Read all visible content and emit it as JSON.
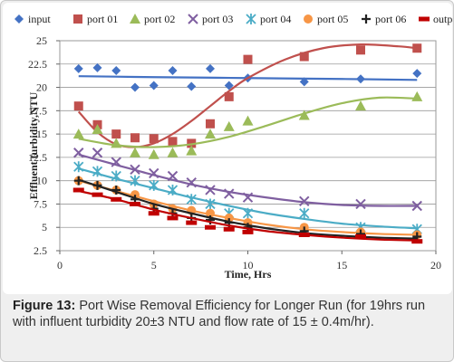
{
  "caption": {
    "label": "Figure 13:",
    "text": " Port Wise Removal Efficiency for Longer Run (for 19hrs run with influent turbidity 20±3 NTU and flow rate of 15 ± 0.4m/hr)."
  },
  "chart_data": {
    "type": "scatter",
    "title": "",
    "xlabel": "Time, Hrs",
    "ylabel": "Effluent turbidity,NTU",
    "xlim": [
      0,
      20
    ],
    "ylim": [
      2.5,
      25
    ],
    "xticks": [
      0,
      5,
      10,
      15,
      20
    ],
    "yticks": [
      2.5,
      5,
      7.5,
      10,
      12.5,
      15,
      17.5,
      20,
      22.5,
      25
    ],
    "ytick_labels": [
      "2.5",
      "5",
      "7.5",
      "10",
      "12.5",
      "15",
      "17.5",
      "20",
      "22.5",
      "25"
    ],
    "grid": true,
    "legend_position": "top",
    "series": [
      {
        "name": "input",
        "marker": "diamond",
        "color": "#4472c4",
        "x": [
          1,
          2,
          3,
          4,
          5,
          6,
          7,
          8,
          9,
          10,
          13,
          16,
          19
        ],
        "y": [
          22,
          22.1,
          21.8,
          20,
          20.2,
          21.8,
          20.1,
          22,
          20.2,
          21,
          20.6,
          20.9,
          21.5
        ],
        "trend": [
          [
            1,
            21.2
          ],
          [
            5,
            21.1
          ],
          [
            10,
            21.0
          ],
          [
            15,
            20.9
          ],
          [
            19,
            20.8
          ]
        ]
      },
      {
        "name": "port 01",
        "marker": "square",
        "color": "#c0504d",
        "x": [
          1,
          2,
          3,
          4,
          5,
          6,
          7,
          8,
          9,
          10,
          13,
          16,
          19
        ],
        "y": [
          18,
          16,
          15,
          14.6,
          14.5,
          14.2,
          14,
          16.1,
          19,
          23,
          23.3,
          24,
          24.2
        ],
        "trend": [
          [
            1,
            17.4
          ],
          [
            2,
            15.2
          ],
          [
            3,
            13.9
          ],
          [
            4,
            13.6
          ],
          [
            5,
            14.0
          ],
          [
            6,
            15.0
          ],
          [
            7,
            16.4
          ],
          [
            8,
            18.0
          ],
          [
            9,
            19.6
          ],
          [
            10,
            21.0
          ],
          [
            12,
            23.0
          ],
          [
            14,
            24.2
          ],
          [
            16,
            24.6
          ],
          [
            18,
            24.4
          ],
          [
            19,
            24.2
          ]
        ]
      },
      {
        "name": "port 02",
        "marker": "triangle",
        "color": "#9bbb59",
        "x": [
          1,
          2,
          3,
          4,
          5,
          6,
          7,
          8,
          9,
          10,
          13,
          16,
          19
        ],
        "y": [
          15,
          15.5,
          14,
          13,
          12.8,
          13,
          13.2,
          15,
          15.8,
          16.4,
          17,
          18,
          19
        ],
        "trend": [
          [
            1,
            14.5
          ],
          [
            3,
            13.8
          ],
          [
            5,
            13.6
          ],
          [
            7,
            13.9
          ],
          [
            9,
            14.7
          ],
          [
            11,
            15.9
          ],
          [
            13,
            17.2
          ],
          [
            15,
            18.3
          ],
          [
            17,
            18.9
          ],
          [
            19,
            18.8
          ]
        ]
      },
      {
        "name": "port 03",
        "marker": "x",
        "color": "#7f5fa0",
        "x": [
          1,
          2,
          3,
          4,
          5,
          6,
          7,
          8,
          9,
          10,
          13,
          16,
          19
        ],
        "y": [
          13,
          13,
          12,
          11.2,
          10.8,
          10.5,
          9.8,
          9,
          8.6,
          8.2,
          7.8,
          7.5,
          7.3
        ],
        "trend": [
          [
            1,
            12.8
          ],
          [
            3,
            11.7
          ],
          [
            5,
            10.6
          ],
          [
            7,
            9.6
          ],
          [
            9,
            8.8
          ],
          [
            11,
            8.2
          ],
          [
            13,
            7.7
          ],
          [
            15,
            7.4
          ],
          [
            17,
            7.3
          ],
          [
            19,
            7.3
          ]
        ]
      },
      {
        "name": "port 04",
        "marker": "star",
        "color": "#4bacc6",
        "x": [
          1,
          2,
          3,
          4,
          5,
          6,
          7,
          8,
          9,
          10,
          13,
          16,
          19
        ],
        "y": [
          11.5,
          11,
          10.5,
          10,
          9.5,
          9,
          8,
          7.5,
          6.5,
          6.5,
          6.5,
          5,
          4.8
        ],
        "trend": [
          [
            1,
            11.3
          ],
          [
            3,
            10.2
          ],
          [
            5,
            9.2
          ],
          [
            7,
            8.2
          ],
          [
            9,
            7.3
          ],
          [
            11,
            6.5
          ],
          [
            13,
            5.9
          ],
          [
            15,
            5.4
          ],
          [
            17,
            5.1
          ],
          [
            19,
            4.9
          ]
        ]
      },
      {
        "name": "port 05",
        "marker": "circle",
        "color": "#f79646",
        "x": [
          1,
          2,
          3,
          4,
          5,
          6,
          7,
          8,
          9,
          10,
          13,
          16,
          19
        ],
        "y": [
          10,
          9.5,
          9,
          8.5,
          7.5,
          7,
          6.8,
          6.5,
          6,
          5.5,
          5,
          4.5,
          4.2
        ],
        "trend": [
          [
            1,
            10.0
          ],
          [
            3,
            8.9
          ],
          [
            5,
            7.8
          ],
          [
            7,
            6.8
          ],
          [
            9,
            6.0
          ],
          [
            11,
            5.3
          ],
          [
            13,
            4.8
          ],
          [
            15,
            4.5
          ],
          [
            17,
            4.3
          ],
          [
            19,
            4.2
          ]
        ]
      },
      {
        "name": "port 06",
        "marker": "plus",
        "color": "#222222",
        "x": [
          1,
          2,
          3,
          4,
          5,
          6,
          7,
          8,
          9,
          10,
          13,
          16,
          19
        ],
        "y": [
          10,
          9.5,
          9,
          8,
          7,
          6.5,
          6,
          5.8,
          5.5,
          5,
          4.6,
          4.3,
          4
        ],
        "trend": [
          [
            1,
            10.1
          ],
          [
            3,
            8.8
          ],
          [
            5,
            7.5
          ],
          [
            7,
            6.5
          ],
          [
            9,
            5.6
          ],
          [
            11,
            4.9
          ],
          [
            13,
            4.4
          ],
          [
            15,
            4.1
          ],
          [
            17,
            3.9
          ],
          [
            19,
            3.8
          ]
        ]
      },
      {
        "name": "output",
        "marker": "dash",
        "color": "#c00000",
        "x": [
          1,
          2,
          3,
          4,
          5,
          6,
          7,
          8,
          9,
          10,
          13,
          16,
          19
        ],
        "y": [
          9,
          8.5,
          8,
          7.5,
          6.5,
          6,
          5.5,
          5,
          4.8,
          4.5,
          4.2,
          4,
          3.5
        ],
        "trend": [
          [
            1,
            8.9
          ],
          [
            3,
            8.0
          ],
          [
            5,
            6.9
          ],
          [
            7,
            6.0
          ],
          [
            9,
            5.2
          ],
          [
            11,
            4.6
          ],
          [
            13,
            4.2
          ],
          [
            15,
            3.9
          ],
          [
            17,
            3.7
          ],
          [
            19,
            3.6
          ]
        ]
      }
    ]
  }
}
